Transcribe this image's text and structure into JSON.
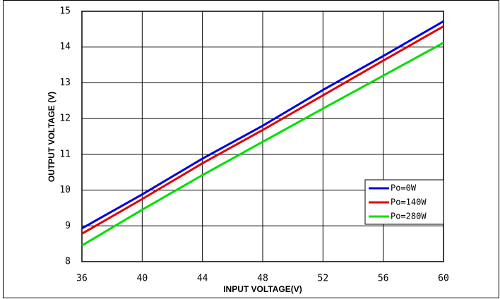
{
  "chart_data": {
    "type": "line",
    "x_label": "INPUT VOLTAGE(V)",
    "y_label": "OUTPUT VOLTAGE (V)",
    "x": [
      36,
      40,
      44,
      48,
      52,
      56,
      60
    ],
    "series": [
      {
        "name": "Po=0W",
        "color": "#0000e0",
        "values": [
          8.93,
          9.88,
          10.88,
          11.8,
          12.8,
          13.75,
          14.72
        ]
      },
      {
        "name": "Po=140W",
        "color": "#e00000",
        "values": [
          8.78,
          9.75,
          10.75,
          11.68,
          12.65,
          13.62,
          14.58
        ]
      },
      {
        "name": "Po=280W",
        "color": "#00e000",
        "values": [
          8.45,
          9.45,
          10.42,
          11.35,
          12.28,
          13.2,
          14.12
        ]
      }
    ],
    "xlim": [
      36,
      60
    ],
    "xticks": [
      36,
      40,
      44,
      48,
      52,
      56,
      60
    ],
    "ylim": [
      8,
      15
    ],
    "yticks": [
      8,
      9,
      10,
      11,
      12,
      13,
      14,
      15
    ],
    "grid": true,
    "legend_position": "lower right"
  }
}
